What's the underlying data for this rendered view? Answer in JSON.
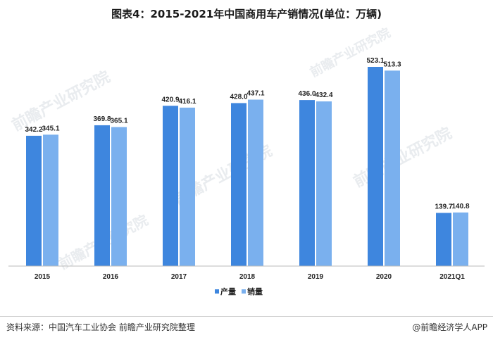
{
  "footer": {
    "source": "资料来源：中国汽车工业协会 前瞻产业研究院整理",
    "credit": "@前瞻经济学人APP"
  },
  "watermark": "前瞻产业研究院",
  "colors": {
    "production": "#3e86de",
    "sales": "#7ab0ee"
  },
  "chart_data": {
    "type": "bar",
    "title": "图表4：2015-2021年中国商用车产销情况(单位：万辆)",
    "categories": [
      "2015",
      "2016",
      "2017",
      "2018",
      "2019",
      "2020",
      "2021Q1"
    ],
    "series": [
      {
        "name": "产量",
        "values": [
          342.2,
          369.8,
          420.9,
          428.0,
          436.0,
          523.1,
          139.7
        ]
      },
      {
        "name": "销量",
        "values": [
          345.1,
          365.1,
          416.1,
          437.1,
          432.4,
          513.3,
          140.8
        ]
      }
    ],
    "xlabel": "",
    "ylabel": "",
    "ylim": [
      0,
      550
    ],
    "grid": false,
    "legend": "bottom-center"
  }
}
